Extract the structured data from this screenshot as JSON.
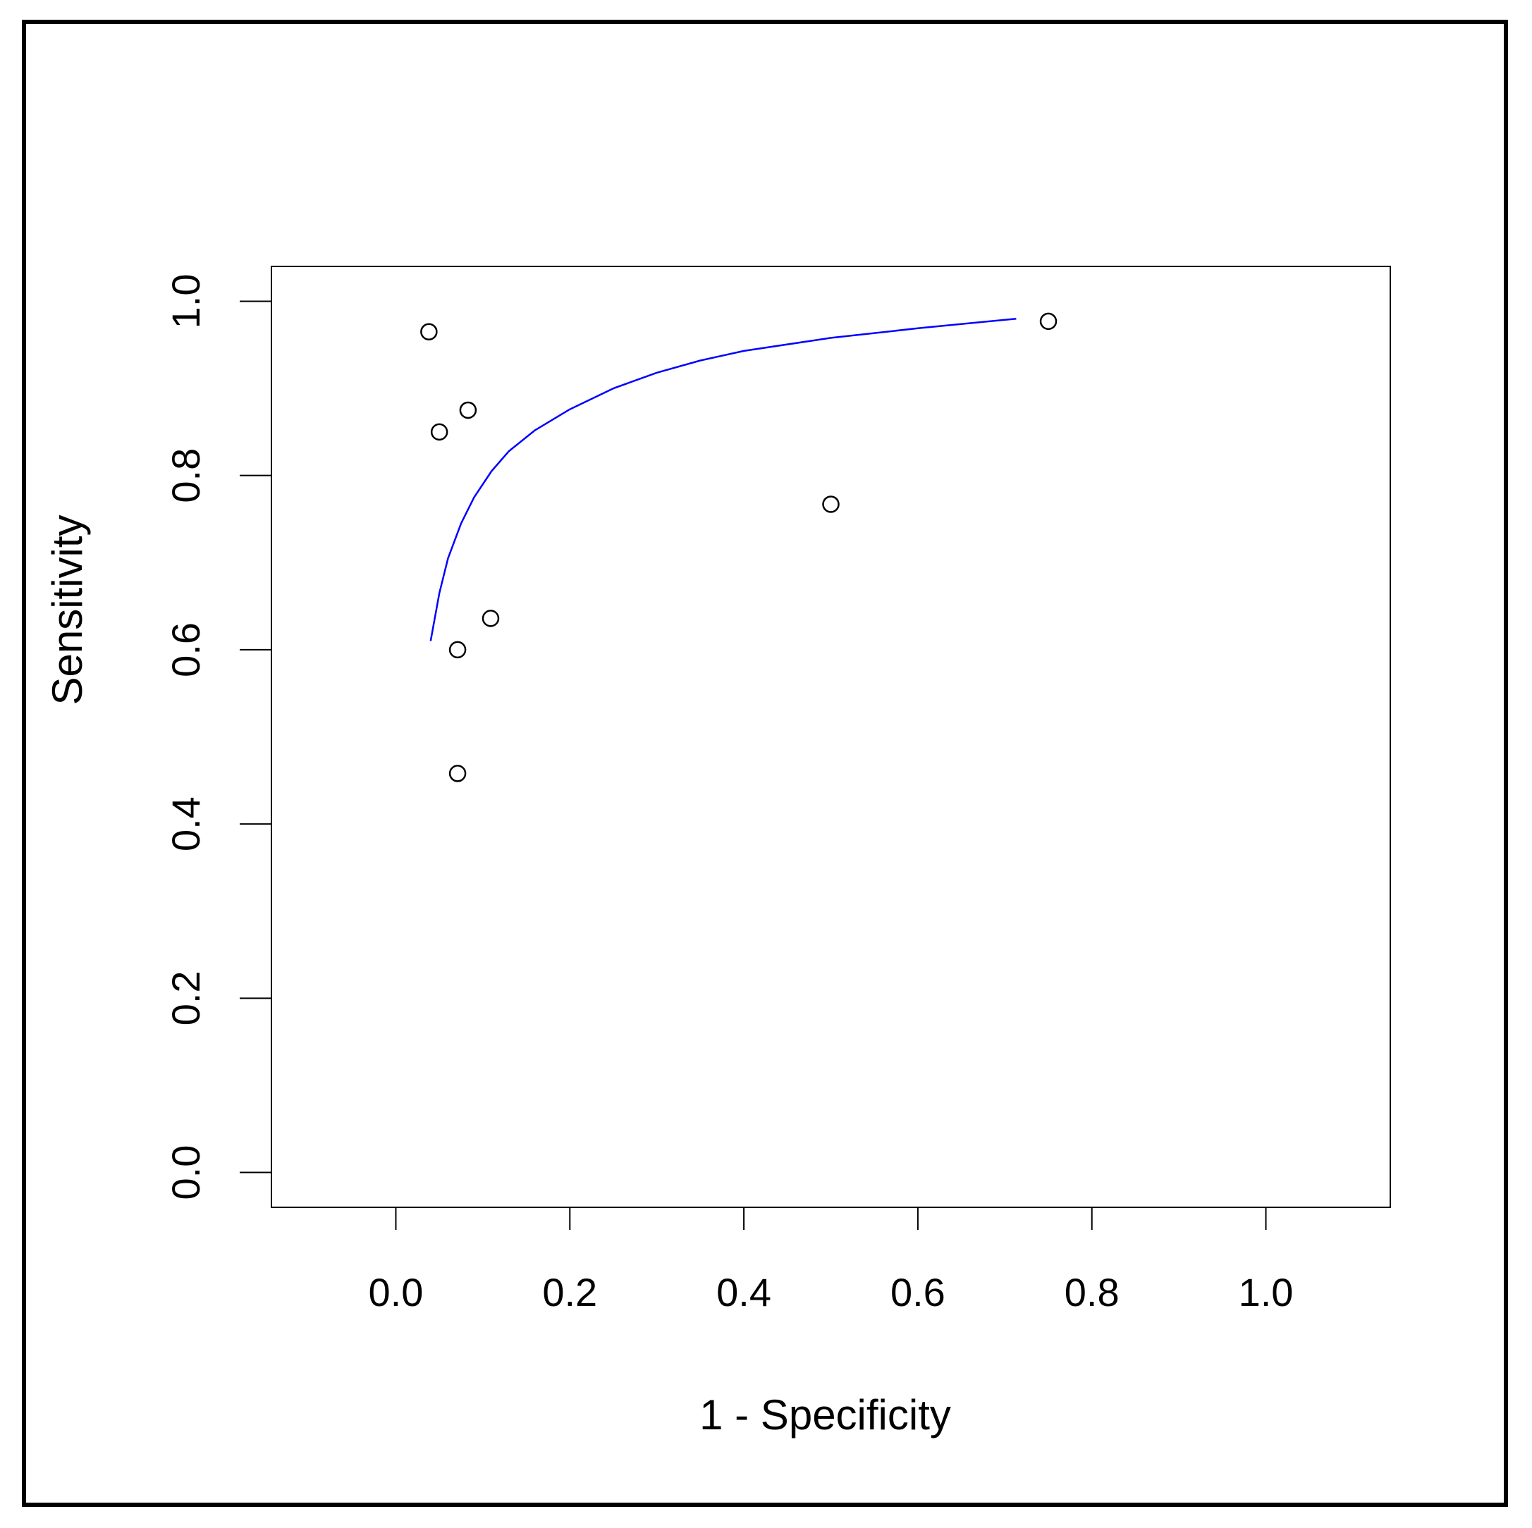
{
  "chart_data": {
    "type": "scatter",
    "title": "",
    "xlabel": "1 - Specificity",
    "ylabel": "Sensitivity",
    "xlim": [
      -0.143,
      1.143
    ],
    "ylim": [
      -0.04,
      1.04
    ],
    "x_ticks": [
      "0.0",
      "0.2",
      "0.4",
      "0.6",
      "0.8",
      "1.0"
    ],
    "y_ticks": [
      "0.0",
      "0.2",
      "0.4",
      "0.6",
      "0.8",
      "1.0"
    ],
    "grid": false,
    "legend": "none",
    "series": [
      {
        "type": "scatter",
        "marker": "open-circle",
        "color": "#000000",
        "points": [
          {
            "x": 0.038,
            "y": 0.965
          },
          {
            "x": 0.05,
            "y": 0.85
          },
          {
            "x": 0.083,
            "y": 0.875
          },
          {
            "x": 0.109,
            "y": 0.636
          },
          {
            "x": 0.071,
            "y": 0.6
          },
          {
            "x": 0.071,
            "y": 0.458
          },
          {
            "x": 0.5,
            "y": 0.767
          },
          {
            "x": 0.75,
            "y": 0.977
          }
        ]
      },
      {
        "type": "line",
        "color": "#0000ff",
        "points": [
          {
            "x": 0.04,
            "y": 0.61
          },
          {
            "x": 0.05,
            "y": 0.665
          },
          {
            "x": 0.06,
            "y": 0.705
          },
          {
            "x": 0.075,
            "y": 0.745
          },
          {
            "x": 0.09,
            "y": 0.775
          },
          {
            "x": 0.11,
            "y": 0.805
          },
          {
            "x": 0.13,
            "y": 0.828
          },
          {
            "x": 0.16,
            "y": 0.852
          },
          {
            "x": 0.2,
            "y": 0.876
          },
          {
            "x": 0.25,
            "y": 0.9
          },
          {
            "x": 0.3,
            "y": 0.918
          },
          {
            "x": 0.35,
            "y": 0.932
          },
          {
            "x": 0.4,
            "y": 0.943
          },
          {
            "x": 0.5,
            "y": 0.958
          },
          {
            "x": 0.6,
            "y": 0.969
          },
          {
            "x": 0.713,
            "y": 0.98
          }
        ]
      }
    ]
  }
}
